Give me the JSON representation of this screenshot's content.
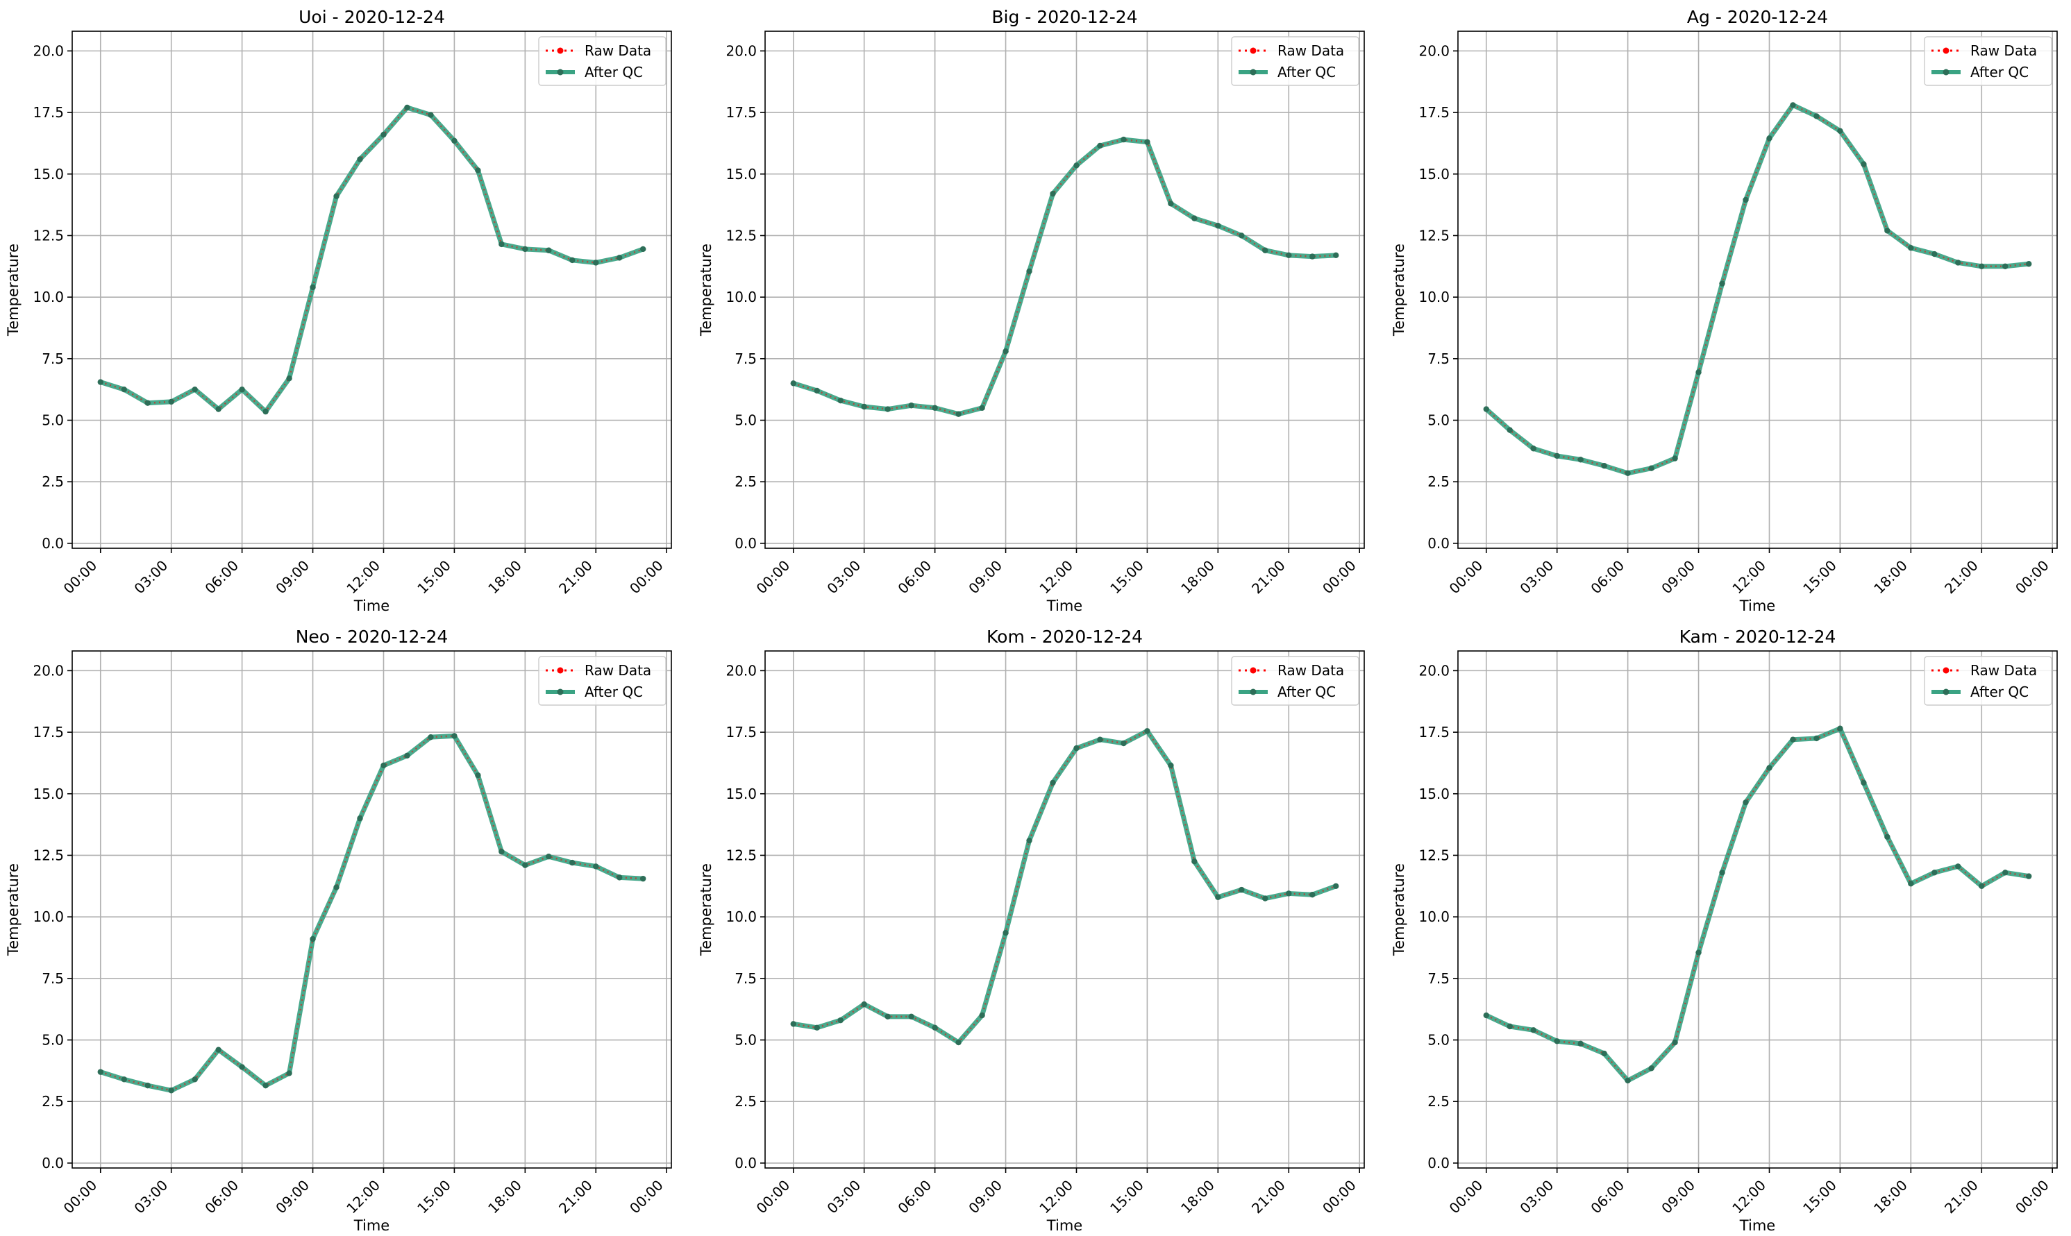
{
  "legend": {
    "raw_label": "Raw Data",
    "qc_label": "After QC"
  },
  "colors": {
    "raw": "#ff0000",
    "qc": "#3aa383",
    "marker": "#2d6e58",
    "grid": "#b0b0b0"
  },
  "chart_data": [
    {
      "type": "line",
      "title": "Uoi - 2020-12-24",
      "xlabel": "Time",
      "ylabel": "Temperature",
      "x_ticks": [
        "00:00",
        "03:00",
        "06:00",
        "09:00",
        "12:00",
        "15:00",
        "18:00",
        "21:00",
        "00:00"
      ],
      "y_ticks": [
        "0.0",
        "2.5",
        "5.0",
        "7.5",
        "10.0",
        "12.5",
        "15.0",
        "17.5",
        "20.0"
      ],
      "xlim": [
        -1.2,
        24.2
      ],
      "ylim": [
        -0.2,
        20.8
      ],
      "grid": true,
      "legend_position": "top-right",
      "series": [
        {
          "name": "Raw Data",
          "values": [
            6.55,
            6.25,
            5.7,
            5.75,
            6.25,
            5.45,
            6.25,
            5.35,
            6.7,
            10.4,
            14.1,
            15.6,
            16.6,
            17.7,
            17.4,
            16.35,
            15.15,
            12.15,
            11.95,
            11.9,
            11.5,
            11.4,
            11.6,
            11.95
          ]
        },
        {
          "name": "After QC",
          "values": [
            6.55,
            6.25,
            5.7,
            5.75,
            6.25,
            5.45,
            6.25,
            5.35,
            6.7,
            10.4,
            14.1,
            15.6,
            16.6,
            17.7,
            17.4,
            16.35,
            15.15,
            12.15,
            11.95,
            11.9,
            11.5,
            11.4,
            11.6,
            11.95
          ]
        }
      ]
    },
    {
      "type": "line",
      "title": "Big - 2020-12-24",
      "xlabel": "Time",
      "ylabel": "Temperature",
      "x_ticks": [
        "00:00",
        "03:00",
        "06:00",
        "09:00",
        "12:00",
        "15:00",
        "18:00",
        "21:00",
        "00:00"
      ],
      "y_ticks": [
        "0.0",
        "2.5",
        "5.0",
        "7.5",
        "10.0",
        "12.5",
        "15.0",
        "17.5",
        "20.0"
      ],
      "xlim": [
        -1.2,
        24.2
      ],
      "ylim": [
        -0.2,
        20.8
      ],
      "grid": true,
      "legend_position": "top-right",
      "series": [
        {
          "name": "Raw Data",
          "values": [
            6.5,
            6.2,
            5.8,
            5.55,
            5.45,
            5.6,
            5.5,
            5.25,
            5.5,
            7.8,
            11.05,
            14.2,
            15.35,
            16.15,
            16.4,
            16.3,
            13.8,
            13.2,
            12.9,
            12.5,
            11.9,
            11.7,
            11.65,
            11.7
          ]
        },
        {
          "name": "After QC",
          "values": [
            6.5,
            6.2,
            5.8,
            5.55,
            5.45,
            5.6,
            5.5,
            5.25,
            5.5,
            7.8,
            11.05,
            14.2,
            15.35,
            16.15,
            16.4,
            16.3,
            13.8,
            13.2,
            12.9,
            12.5,
            11.9,
            11.7,
            11.65,
            11.7
          ]
        }
      ]
    },
    {
      "type": "line",
      "title": "Ag - 2020-12-24",
      "xlabel": "Time",
      "ylabel": "Temperature",
      "x_ticks": [
        "00:00",
        "03:00",
        "06:00",
        "09:00",
        "12:00",
        "15:00",
        "18:00",
        "21:00",
        "00:00"
      ],
      "y_ticks": [
        "0.0",
        "2.5",
        "5.0",
        "7.5",
        "10.0",
        "12.5",
        "15.0",
        "17.5",
        "20.0"
      ],
      "xlim": [
        -1.2,
        24.2
      ],
      "ylim": [
        -0.2,
        20.8
      ],
      "grid": true,
      "legend_position": "top-right",
      "series": [
        {
          "name": "Raw Data",
          "values": [
            5.45,
            4.6,
            3.85,
            3.55,
            3.4,
            3.15,
            2.85,
            3.05,
            3.45,
            6.95,
            10.55,
            13.95,
            16.45,
            17.8,
            17.35,
            16.75,
            15.4,
            12.7,
            12.0,
            11.75,
            11.4,
            11.25,
            11.25,
            11.35
          ]
        },
        {
          "name": "After QC",
          "values": [
            5.45,
            4.6,
            3.85,
            3.55,
            3.4,
            3.15,
            2.85,
            3.05,
            3.45,
            6.95,
            10.55,
            13.95,
            16.45,
            17.8,
            17.35,
            16.75,
            15.4,
            12.7,
            12.0,
            11.75,
            11.4,
            11.25,
            11.25,
            11.35
          ]
        }
      ]
    },
    {
      "type": "line",
      "title": "Neo - 2020-12-24",
      "xlabel": "Time",
      "ylabel": "Temperature",
      "x_ticks": [
        "00:00",
        "03:00",
        "06:00",
        "09:00",
        "12:00",
        "15:00",
        "18:00",
        "21:00",
        "00:00"
      ],
      "y_ticks": [
        "0.0",
        "2.5",
        "5.0",
        "7.5",
        "10.0",
        "12.5",
        "15.0",
        "17.5",
        "20.0"
      ],
      "xlim": [
        -1.2,
        24.2
      ],
      "ylim": [
        -0.2,
        20.8
      ],
      "grid": true,
      "legend_position": "top-right",
      "series": [
        {
          "name": "Raw Data",
          "values": [
            3.7,
            3.4,
            3.15,
            2.95,
            3.4,
            4.6,
            3.9,
            3.15,
            3.65,
            9.1,
            11.2,
            14.0,
            16.15,
            16.55,
            17.3,
            17.35,
            15.75,
            12.65,
            12.1,
            12.45,
            12.2,
            12.05,
            11.6,
            11.55
          ]
        },
        {
          "name": "After QC",
          "values": [
            3.7,
            3.4,
            3.15,
            2.95,
            3.4,
            4.6,
            3.9,
            3.15,
            3.65,
            9.1,
            11.2,
            14.0,
            16.15,
            16.55,
            17.3,
            17.35,
            15.75,
            12.65,
            12.1,
            12.45,
            12.2,
            12.05,
            11.6,
            11.55
          ]
        }
      ]
    },
    {
      "type": "line",
      "title": "Kom - 2020-12-24",
      "xlabel": "Time",
      "ylabel": "Temperature",
      "x_ticks": [
        "00:00",
        "03:00",
        "06:00",
        "09:00",
        "12:00",
        "15:00",
        "18:00",
        "21:00",
        "00:00"
      ],
      "y_ticks": [
        "0.0",
        "2.5",
        "5.0",
        "7.5",
        "10.0",
        "12.5",
        "15.0",
        "17.5",
        "20.0"
      ],
      "xlim": [
        -1.2,
        24.2
      ],
      "ylim": [
        -0.2,
        20.8
      ],
      "grid": true,
      "legend_position": "top-right",
      "series": [
        {
          "name": "Raw Data",
          "values": [
            5.65,
            5.5,
            5.8,
            6.45,
            5.95,
            5.95,
            5.5,
            4.9,
            6.0,
            9.35,
            13.1,
            15.45,
            16.85,
            17.2,
            17.05,
            17.55,
            16.15,
            12.25,
            10.8,
            11.1,
            10.75,
            10.95,
            10.9,
            11.25
          ]
        },
        {
          "name": "After QC",
          "values": [
            5.65,
            5.5,
            5.8,
            6.45,
            5.95,
            5.95,
            5.5,
            4.9,
            6.0,
            9.35,
            13.1,
            15.45,
            16.85,
            17.2,
            17.05,
            17.55,
            16.15,
            12.25,
            10.8,
            11.1,
            10.75,
            10.95,
            10.9,
            11.25
          ]
        }
      ]
    },
    {
      "type": "line",
      "title": "Kam - 2020-12-24",
      "xlabel": "Time",
      "ylabel": "Temperature",
      "x_ticks": [
        "00:00",
        "03:00",
        "06:00",
        "09:00",
        "12:00",
        "15:00",
        "18:00",
        "21:00",
        "00:00"
      ],
      "y_ticks": [
        "0.0",
        "2.5",
        "5.0",
        "7.5",
        "10.0",
        "12.5",
        "15.0",
        "17.5",
        "20.0"
      ],
      "xlim": [
        -1.2,
        24.2
      ],
      "ylim": [
        -0.2,
        20.8
      ],
      "grid": true,
      "legend_position": "top-right",
      "series": [
        {
          "name": "Raw Data",
          "values": [
            6.0,
            5.55,
            5.4,
            4.95,
            4.85,
            4.45,
            3.35,
            3.85,
            4.9,
            8.55,
            11.8,
            14.65,
            16.05,
            17.2,
            17.25,
            17.65,
            15.45,
            13.25,
            11.35,
            11.8,
            12.05,
            11.25,
            11.8,
            11.65
          ]
        },
        {
          "name": "After QC",
          "values": [
            6.0,
            5.55,
            5.4,
            4.95,
            4.85,
            4.45,
            3.35,
            3.85,
            4.9,
            8.55,
            11.8,
            14.65,
            16.05,
            17.2,
            17.25,
            17.65,
            15.45,
            13.25,
            11.35,
            11.8,
            12.05,
            11.25,
            11.8,
            11.65
          ]
        }
      ]
    }
  ]
}
